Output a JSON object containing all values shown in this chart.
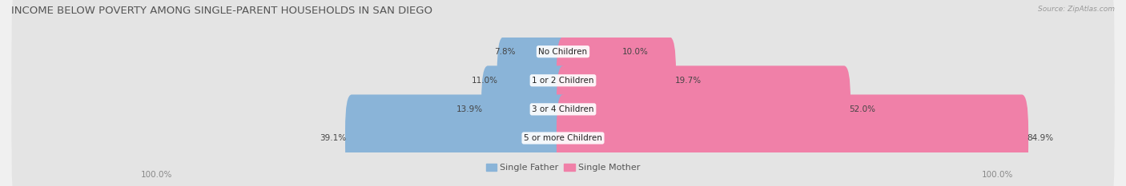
{
  "title": "INCOME BELOW POVERTY AMONG SINGLE-PARENT HOUSEHOLDS IN SAN DIEGO",
  "source": "Source: ZipAtlas.com",
  "categories": [
    "No Children",
    "1 or 2 Children",
    "3 or 4 Children",
    "5 or more Children"
  ],
  "single_father": [
    7.8,
    11.0,
    13.9,
    39.1
  ],
  "single_mother": [
    10.0,
    19.7,
    52.0,
    84.9
  ],
  "father_color": "#8ab4d8",
  "mother_color": "#f080a8",
  "bg_color": "#f0f0f0",
  "row_bg_color": "#e4e4e4",
  "max_val": 100.0,
  "bar_height": 0.62,
  "title_fontsize": 9.5,
  "label_fontsize": 7.5,
  "tick_fontsize": 7.5,
  "legend_fontsize": 8
}
